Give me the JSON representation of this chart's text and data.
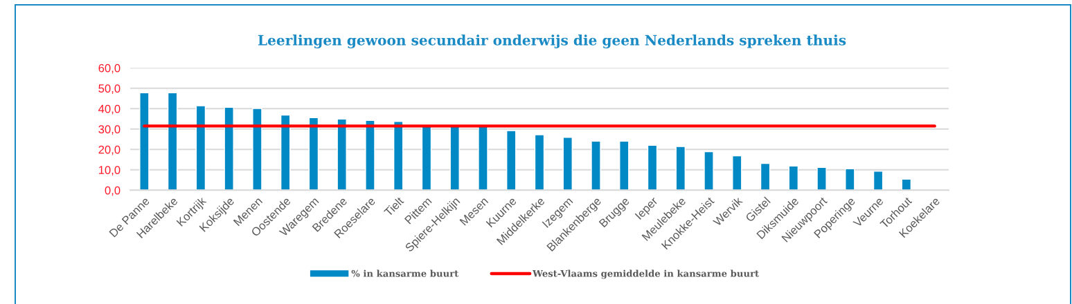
{
  "chart_data": {
    "type": "bar",
    "title": "Leerlingen gewoon secundair onderwijs die geen Nederlands spreken thuis",
    "categories": [
      "De Panne",
      "Harelbeke",
      "Kortrijk",
      "Koksijde",
      "Menen",
      "Oostende",
      "Waregem",
      "Bredene",
      "Roeselare",
      "Tielt",
      "Pittem",
      "Spiere-Helkijn",
      "Mesen",
      "Kuurne",
      "Middelkerke",
      "Izegem",
      "Blankenberge",
      "Brugge",
      "Ieper",
      "Meulebeke",
      "Knokke-Heist",
      "Wervik",
      "Gistel",
      "Diksmuide",
      "Nieuwpoort",
      "Poperinge",
      "Veurne",
      "Torhout",
      "Koekelare"
    ],
    "series": [
      {
        "name": "% in kansarme buurt",
        "color": "#0089c4",
        "values": [
          47.8,
          47.8,
          41.4,
          40.7,
          40.1,
          36.9,
          35.6,
          34.9,
          34.2,
          33.7,
          31.4,
          31.4,
          31.4,
          29.2,
          27.2,
          25.9,
          24.1,
          24.1,
          22.0,
          21.4,
          18.9,
          16.9,
          13.1,
          11.9,
          11.2,
          10.5,
          9.3,
          5.4,
          null
        ]
      },
      {
        "name": "West-Vlaams gemiddelde in kansarme buurt",
        "type": "line",
        "color": "#ff0000",
        "line_style": "solid",
        "values": [
          31.5,
          31.5,
          31.5,
          31.5,
          31.5,
          31.5,
          31.5,
          31.5,
          31.5,
          31.5,
          31.5,
          31.5,
          31.5,
          31.5,
          31.5,
          31.5,
          31.5,
          31.5,
          31.5,
          31.5,
          31.5,
          31.5,
          31.5,
          31.5,
          31.5,
          31.5,
          31.5,
          31.5,
          31.5
        ]
      }
    ],
    "ylim": [
      0,
      60
    ],
    "yticks": [
      {
        "value": 0,
        "label": "0,0"
      },
      {
        "value": 10,
        "label": "10,0"
      },
      {
        "value": 20,
        "label": "20,0"
      },
      {
        "value": 30,
        "label": "30,0"
      },
      {
        "value": 40,
        "label": "40,0"
      },
      {
        "value": 50,
        "label": "50,0"
      },
      {
        "value": 60,
        "label": "60,0"
      }
    ],
    "grid": "y",
    "legend": "bottom"
  }
}
